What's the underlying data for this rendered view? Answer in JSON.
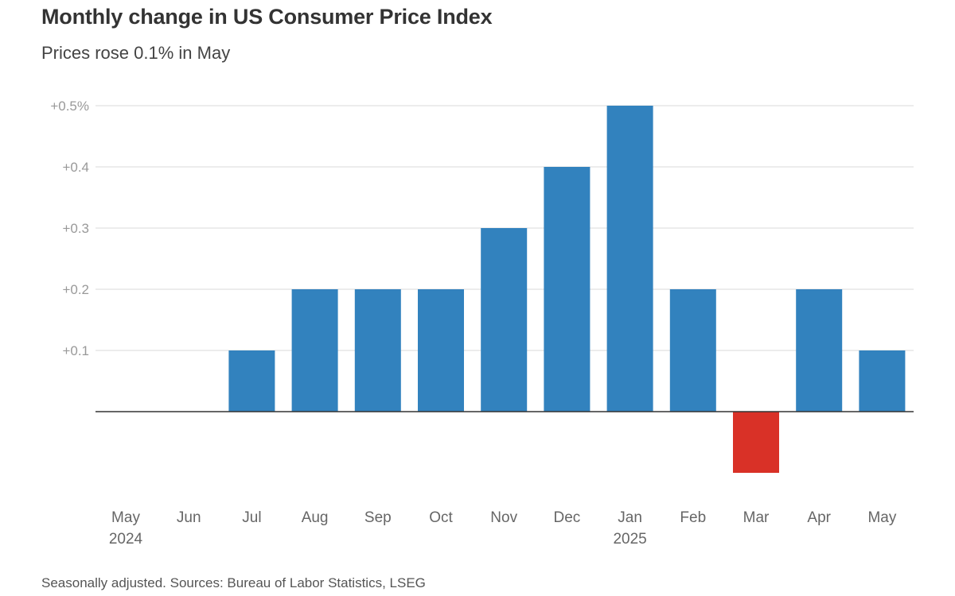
{
  "title": "Monthly change in US Consumer Price Index",
  "subtitle": "Prices rose 0.1% in May",
  "source": "Seasonally adjusted. Sources: Bureau of Labor Statistics, LSEG",
  "chart_data": {
    "type": "bar",
    "categories": [
      "May",
      "Jun",
      "Jul",
      "Aug",
      "Sep",
      "Oct",
      "Nov",
      "Dec",
      "Jan",
      "Feb",
      "Mar",
      "Apr",
      "May"
    ],
    "year_labels": [
      "2024",
      "",
      "",
      "",
      "",
      "",
      "",
      "",
      "2025",
      "",
      "",
      "",
      ""
    ],
    "values": [
      0.0,
      0.0,
      0.1,
      0.2,
      0.2,
      0.2,
      0.3,
      0.4,
      0.5,
      0.2,
      -0.1,
      0.2,
      0.1
    ],
    "ylim": [
      -0.1,
      0.5
    ],
    "yticks": [
      0.1,
      0.2,
      0.3,
      0.4,
      0.5
    ],
    "ytick_labels": [
      "+0.1",
      "+0.2",
      "+0.3",
      "+0.4",
      "+0.5%"
    ],
    "grid": true,
    "colors": {
      "positive": "#3282be",
      "negative": "#d93127",
      "grid": "#d8d8d8",
      "baseline": "#333333"
    }
  }
}
